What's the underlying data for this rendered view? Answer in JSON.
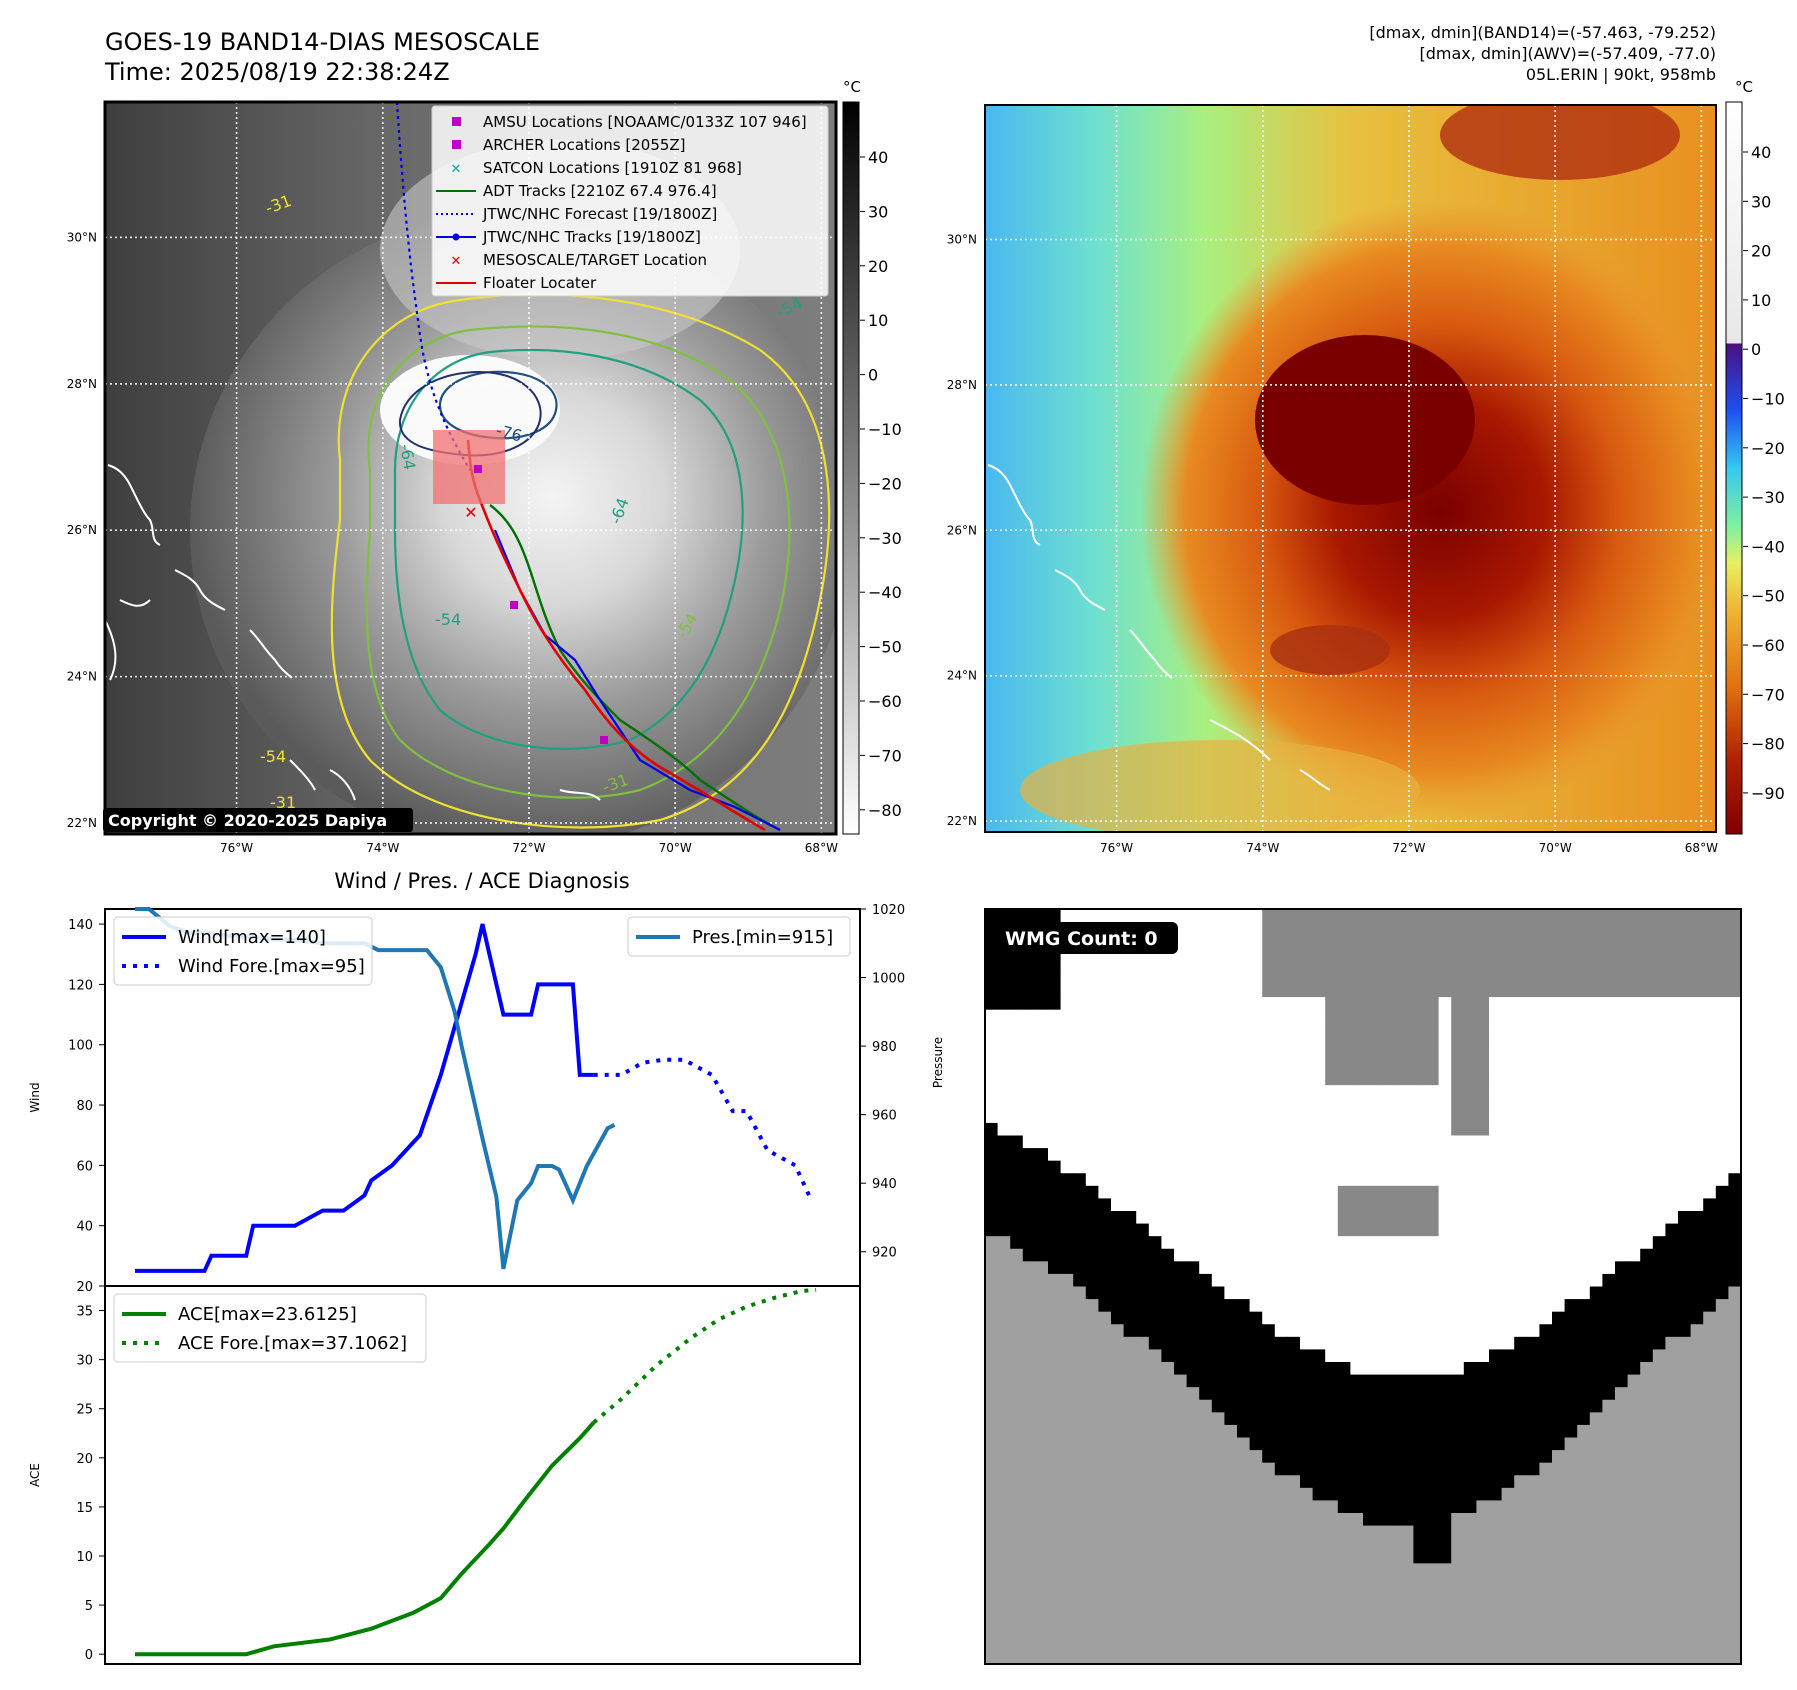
{
  "header": {
    "title_line1": "GOES-19 BAND14-DIAS MESOSCALE",
    "title_line2": "Time: 2025/08/19 22:38:24Z",
    "right_line1": "[dmax, dmin](BAND14)=(-57.463, -79.252)",
    "right_line2": "[dmax, dmin](AWV)=(-57.409, -77.0)",
    "right_line3": "05L.ERIN | 90kt, 958mb"
  },
  "map": {
    "lat_labels": [
      "30°N",
      "28°N",
      "26°N",
      "24°N",
      "22°N"
    ],
    "lat_values": [
      30,
      28,
      26,
      24,
      22
    ],
    "lon_labels": [
      "76°W",
      "74°W",
      "72°W",
      "70°W",
      "68°W"
    ],
    "lon_values": [
      -76,
      -74,
      -72,
      -70,
      -68
    ],
    "lat_range": [
      21.85,
      31.85
    ],
    "lon_range": [
      -77.8,
      -67.8
    ],
    "copyright": "Copyright © 2020-2025 Dapiya",
    "contour_labels": [
      "-31",
      "-54",
      "-64",
      "-76",
      "-54",
      "-64",
      "-54",
      "-31",
      "-31",
      "-54"
    ],
    "legend": [
      {
        "label": "AMSU Locations [NOAAMC/0133Z 107 946]",
        "marker": "square",
        "color": "#c000c0"
      },
      {
        "label": "ARCHER Locations [2055Z]",
        "marker": "square",
        "color": "#c000c0"
      },
      {
        "label": "SATCON Locations [1910Z 81 968]",
        "marker": "x",
        "color": "#00b0b0"
      },
      {
        "label": "ADT Tracks [2210Z 67.4 976.4]",
        "marker": "line",
        "color": "#007000"
      },
      {
        "label": "JTWC/NHC Forecast [19/1800Z]",
        "marker": "dotted",
        "color": "#0000e0"
      },
      {
        "label": "JTWC/NHC Tracks [19/1800Z]",
        "marker": "line-dot",
        "color": "#0000e0"
      },
      {
        "label": "MESOSCALE/TARGET Location",
        "marker": "x",
        "color": "#e00000"
      },
      {
        "label": "Floater Locater",
        "marker": "line",
        "color": "#e00000"
      }
    ],
    "colorbar_left": {
      "unit": "°C",
      "ticks": [
        "40",
        "30",
        "20",
        "10",
        "0",
        "−10",
        "−20",
        "−30",
        "−40",
        "−50",
        "−60",
        "−70",
        "−80"
      ]
    },
    "colorbar_right": {
      "unit": "°C",
      "ticks": [
        "40",
        "30",
        "20",
        "10",
        "0",
        "−10",
        "−20",
        "−30",
        "−40",
        "−50",
        "−60",
        "−70",
        "−80",
        "−90"
      ]
    }
  },
  "chart_data": [
    {
      "type": "line",
      "title": "Wind / Pres. / ACE Diagnosis",
      "ylabel": "Wind",
      "ylabel_right": "Pressure",
      "ylim": [
        20,
        145
      ],
      "ylim_right": [
        910,
        1020
      ],
      "xlim": [
        0,
        100
      ],
      "y_ticks": [
        20,
        40,
        60,
        80,
        100,
        120,
        140
      ],
      "y_ticks_right": [
        920,
        940,
        960,
        980,
        1000,
        1020
      ],
      "series": [
        {
          "name": "Wind[max=140]",
          "axis": "left",
          "color": "#0000ff",
          "style": "solid",
          "x": [
            0,
            10,
            11,
            16,
            17,
            23,
            27,
            30,
            33,
            34,
            37,
            41,
            44,
            49,
            50,
            51,
            53,
            53,
            54,
            57,
            58,
            63,
            64,
            66
          ],
          "y": [
            25,
            25,
            30,
            30,
            40,
            40,
            45,
            45,
            50,
            55,
            60,
            70,
            90,
            130,
            140,
            130,
            110,
            110,
            110,
            110,
            120,
            120,
            90,
            90
          ]
        },
        {
          "name": "Wind Fore.[max=95]",
          "axis": "left",
          "color": "#0000ff",
          "style": "dotted",
          "x": [
            66,
            70,
            73,
            76,
            79,
            83,
            86,
            88,
            91,
            95,
            97
          ],
          "y": [
            90,
            90,
            94,
            95,
            95,
            90,
            78,
            78,
            65,
            60,
            50
          ]
        },
        {
          "name": "Pres.[min=915]",
          "axis": "right",
          "color": "#1f77b4",
          "style": "solid",
          "x": [
            0,
            2,
            5,
            8,
            11,
            14,
            17,
            20,
            23,
            27,
            33,
            35,
            42,
            44,
            46,
            47,
            49,
            50,
            52,
            53,
            55,
            57,
            58,
            60,
            61,
            63,
            65,
            68,
            69
          ],
          "y": [
            1020,
            1020,
            1015,
            1013,
            1013,
            1012,
            1012,
            1011,
            1011,
            1010,
            1010,
            1008,
            1008,
            1003,
            990,
            980,
            962,
            953,
            936,
            915,
            935,
            940,
            945,
            945,
            944,
            935,
            945,
            956,
            957
          ]
        }
      ]
    },
    {
      "type": "line",
      "ylabel": "ACE",
      "ylim": [
        -1,
        37.5
      ],
      "xlim": [
        0,
        100
      ],
      "y_ticks": [
        0,
        5,
        10,
        15,
        20,
        25,
        30,
        35
      ],
      "series": [
        {
          "name": "ACE[max=23.6125]",
          "color": "#008000",
          "style": "solid",
          "x": [
            0,
            16,
            20,
            28,
            34,
            40,
            44,
            47,
            51,
            53,
            56,
            60,
            64,
            66
          ],
          "y": [
            0,
            0,
            0.8,
            1.5,
            2.6,
            4.2,
            5.7,
            8.2,
            11.2,
            12.8,
            15.6,
            19.2,
            22.0,
            23.6
          ]
        },
        {
          "name": "ACE Fore.[max=37.1062]",
          "color": "#008000",
          "style": "dotted",
          "x": [
            66,
            70,
            75,
            80,
            84,
            88,
            92,
            96,
            98
          ],
          "y": [
            23.6,
            26.0,
            29.4,
            32.2,
            34.1,
            35.4,
            36.3,
            37.0,
            37.1
          ]
        }
      ]
    }
  ],
  "wmg": {
    "label": "WMG Count: 0"
  }
}
